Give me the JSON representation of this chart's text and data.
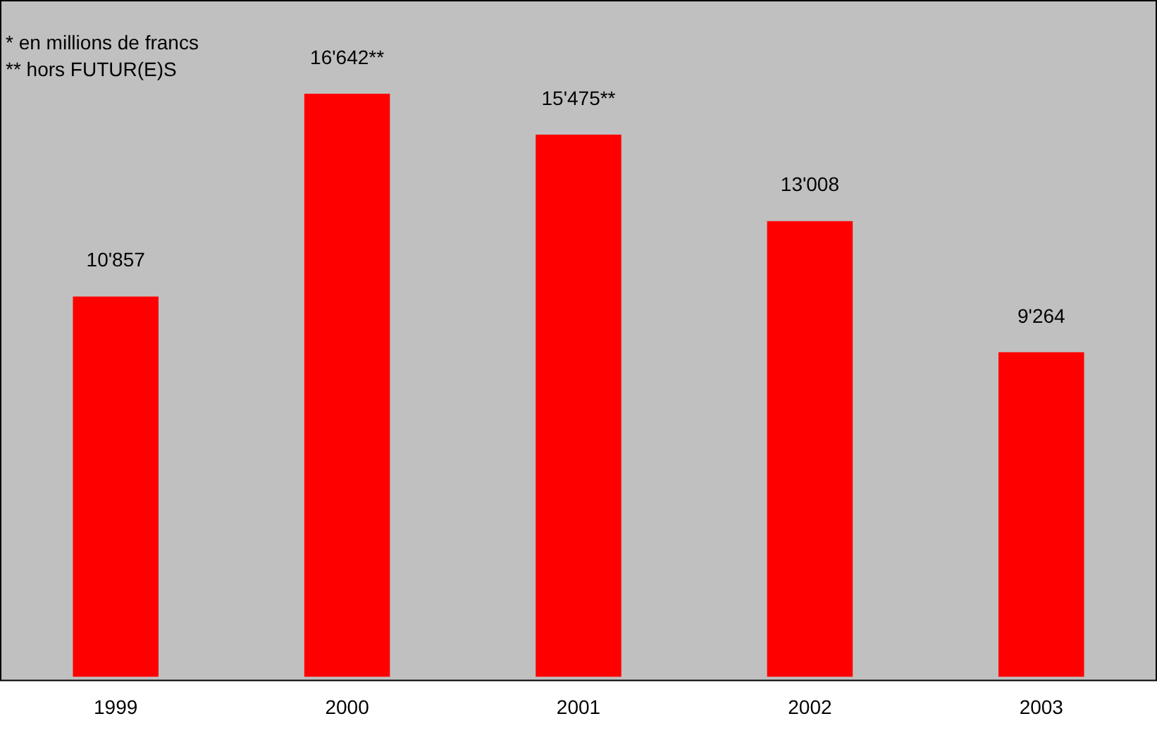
{
  "chart_data": {
    "type": "bar",
    "categories": [
      "1999",
      "2000",
      "2001",
      "2002",
      "2003"
    ],
    "values": [
      10857,
      16642,
      15475,
      13008,
      9264
    ],
    "value_labels": [
      "10'857",
      "16'642**",
      "15'475**",
      "13'008",
      "9'264"
    ],
    "color": "#ff0000",
    "grid": false,
    "legend": false,
    "annotations": [
      "* en millions de francs",
      "** hors FUTUR(E)S"
    ]
  }
}
